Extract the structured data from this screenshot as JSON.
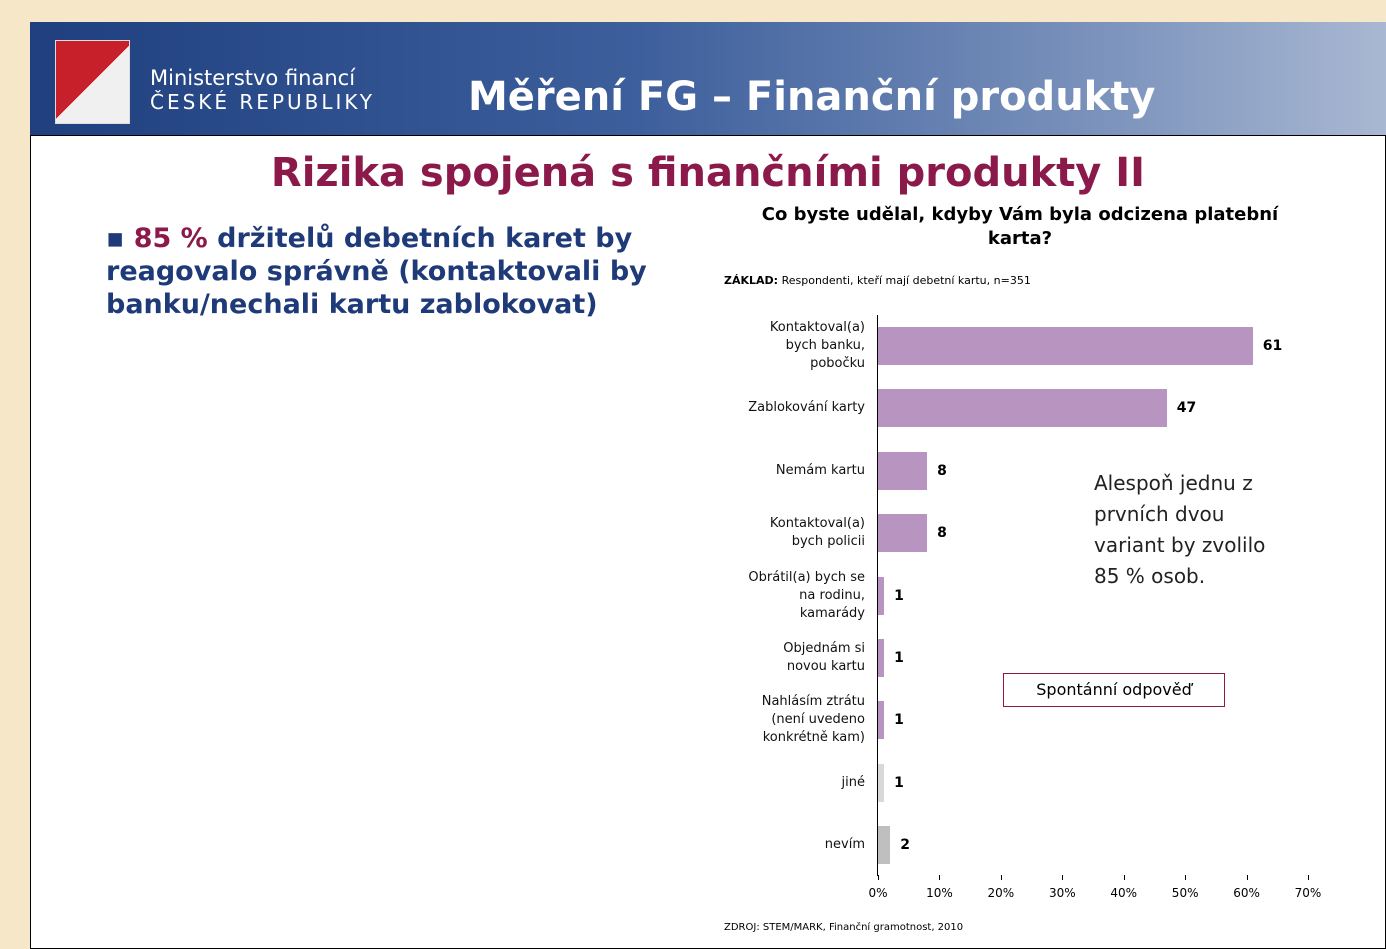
{
  "header": {
    "ministry": "Ministerstvo financí",
    "country": "ČESKÉ REPUBLIKY",
    "title": "Měření FG – Finanční produkty"
  },
  "slide_title": "Rizika spojená s finančními produkty II",
  "bullet": {
    "highlight": "85 %",
    "text": "držitelů debetních karet by reagovalo správně (kontaktovali by banku/nechali kartu zablokovat)"
  },
  "chart_data": {
    "type": "barh",
    "title": "Co byste udělal, kdyby Vám byla odcizena platební karta?",
    "subtitle_label": "ZÁKLAD:",
    "subtitle": "Respondenti, kteří mají debetní kartu, n=351",
    "categories": [
      "Kontaktoval(a)\nbych banku,\npobočku",
      "Zablokování karty",
      "Nemám kartu",
      "Kontaktoval(a)\nbych policii",
      "Obrátil(a) bych se\nna rodinu,\nkamarády",
      "Objednám si\nnovou kartu",
      "Nahlásím ztrátu\n(není uvedeno\nkonkrétně kam)",
      "jiné",
      "nevím"
    ],
    "values": [
      61,
      47,
      8,
      8,
      1,
      1,
      1,
      1,
      2
    ],
    "colors": [
      "#b895c0",
      "#b895c0",
      "#b895c0",
      "#b895c0",
      "#b895c0",
      "#b895c0",
      "#b895c0",
      "#d9d9d9",
      "#bfbfbf"
    ],
    "xlim": [
      0,
      70
    ],
    "xticks": [
      {
        "value": 0,
        "label": "0%"
      },
      {
        "value": 10,
        "label": "10%"
      },
      {
        "value": 20,
        "label": "20%"
      },
      {
        "value": 30,
        "label": "30%"
      },
      {
        "value": 40,
        "label": "40%"
      },
      {
        "value": 50,
        "label": "50%"
      },
      {
        "value": 60,
        "label": "60%"
      },
      {
        "value": 70,
        "label": "70%"
      }
    ],
    "annotation": "Alespoň jednu z prvních dvou variant by zvolilo 85 % osob.",
    "note": "Spontánní odpověď",
    "source": "ZDROJ: STEM/MARK, Finanční gramotnost, 2010"
  }
}
